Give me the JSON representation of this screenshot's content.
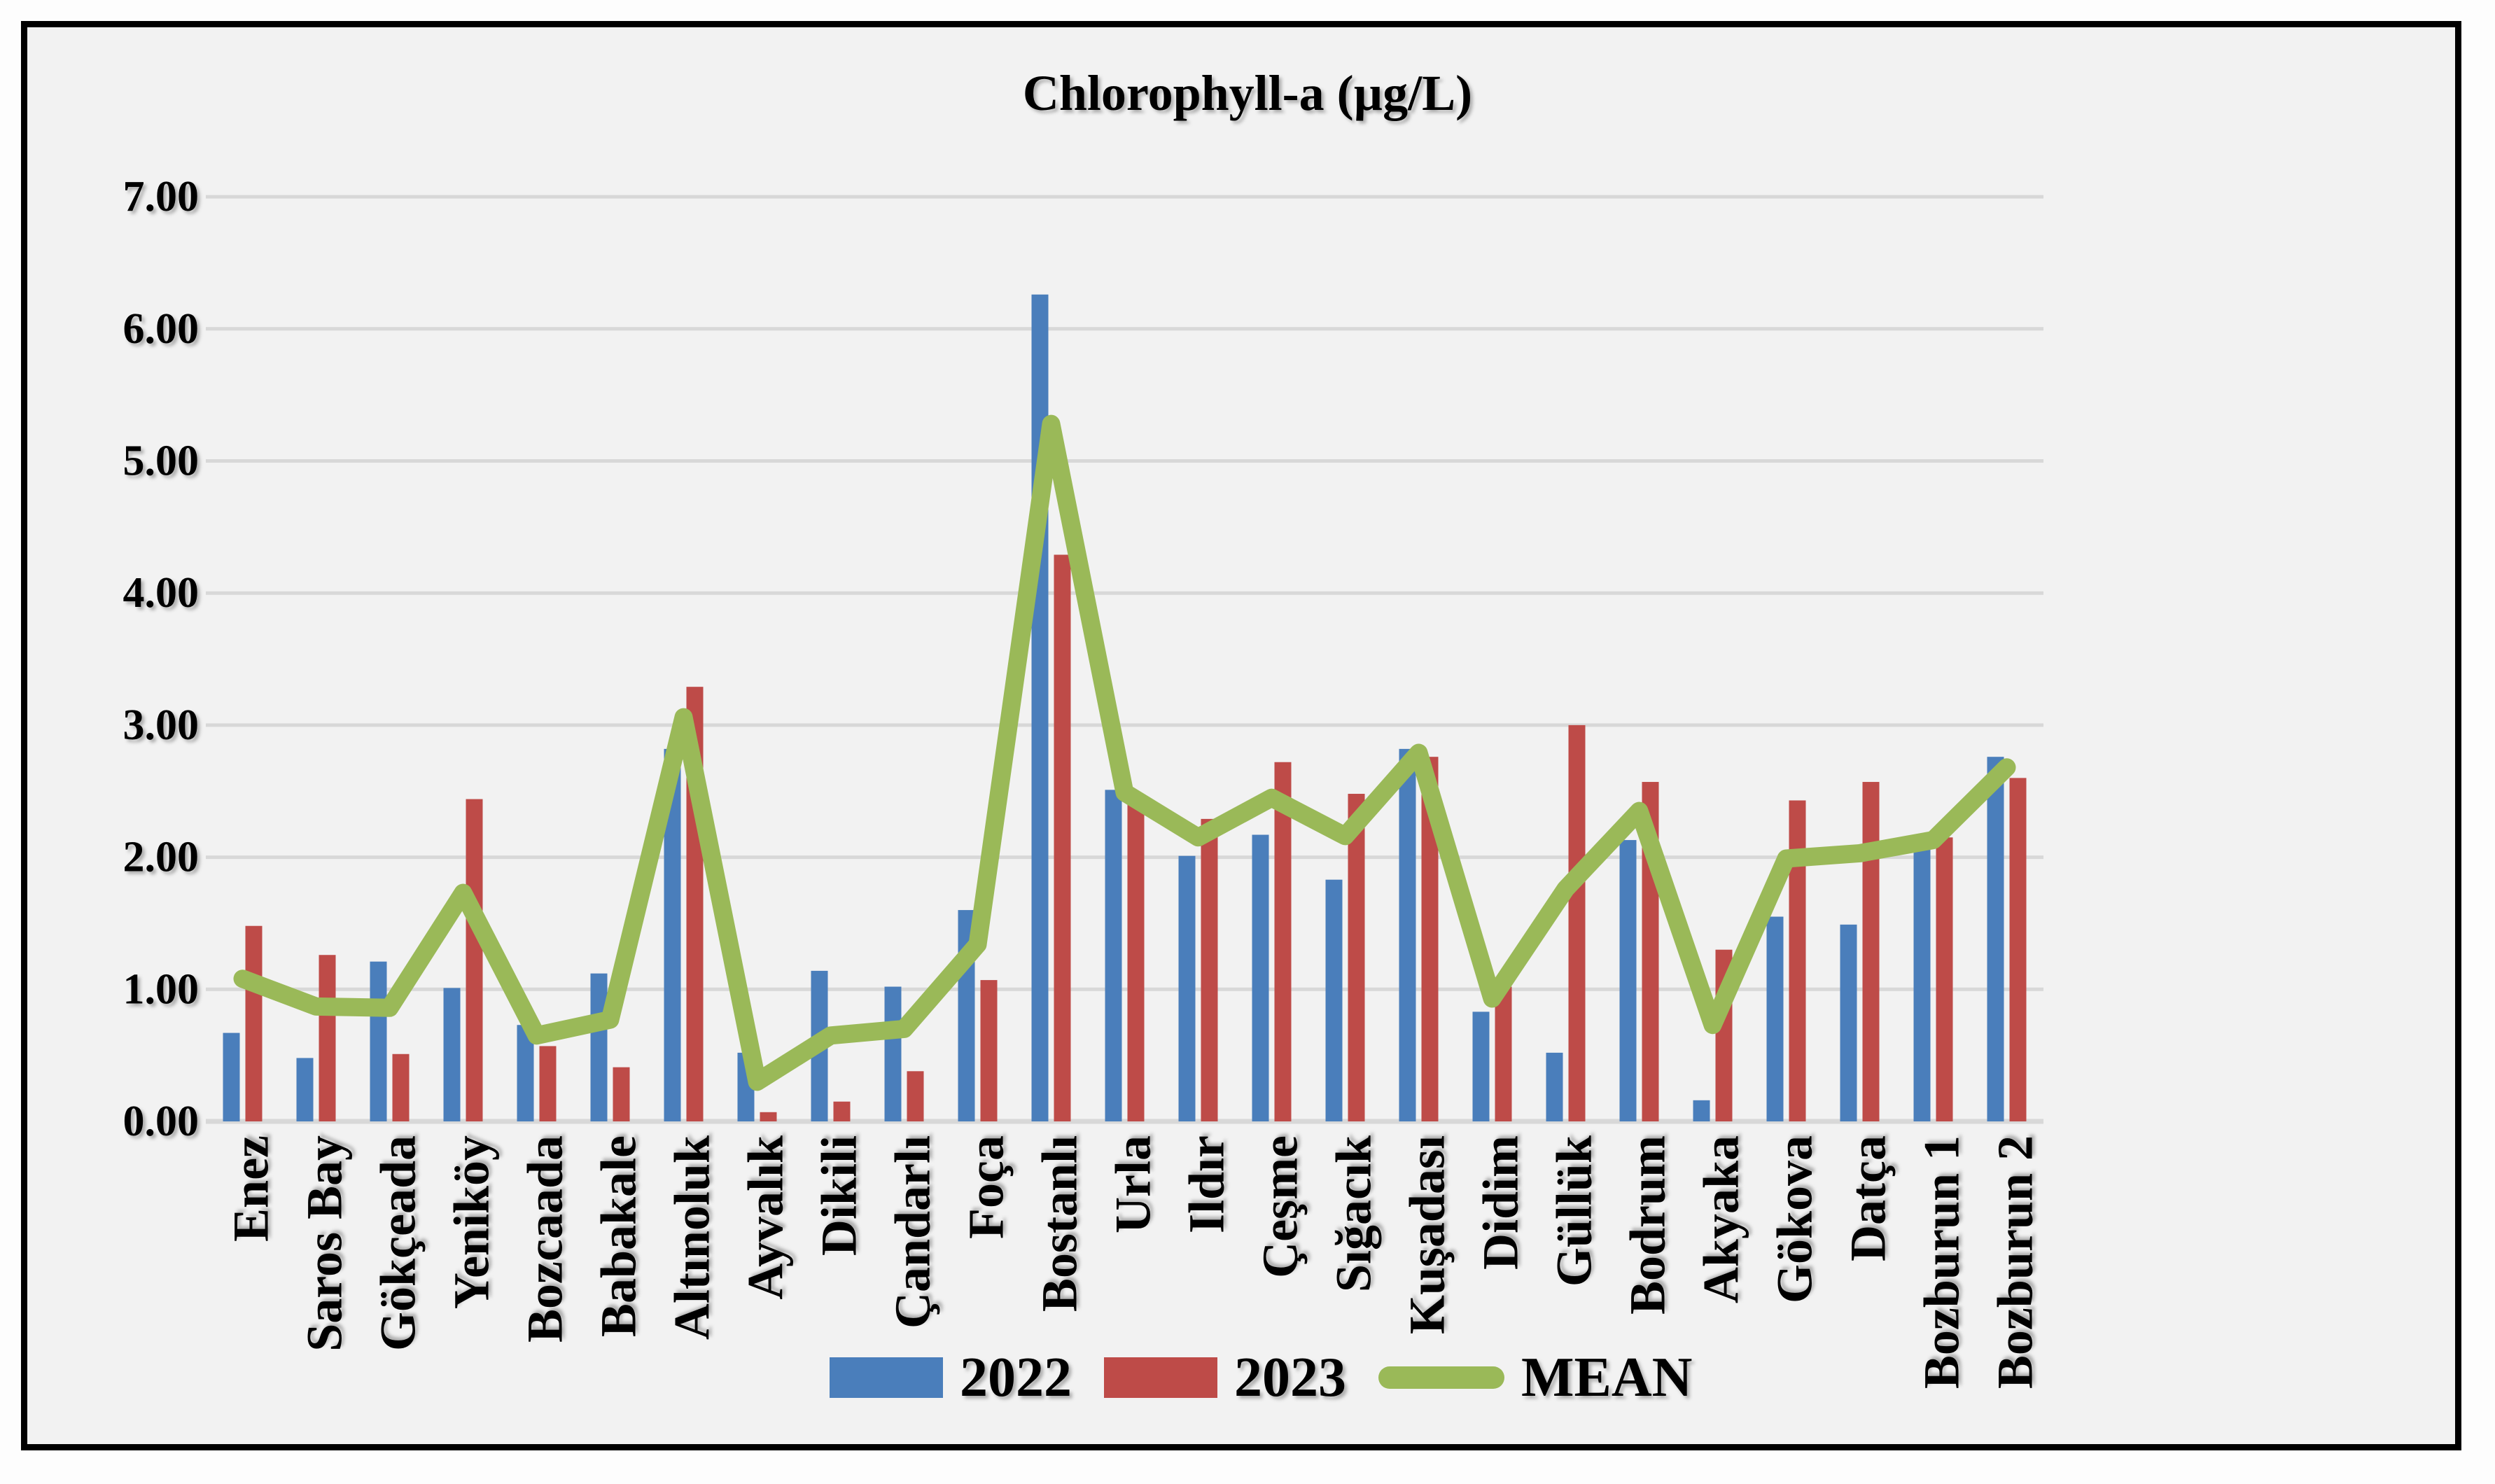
{
  "window": {
    "panel_background": "#f2f2f2",
    "frame_border_color": "#000000",
    "gridline_color": "#d8d8d8"
  },
  "chart_data": {
    "type": "bar",
    "title": "Chlorophyll-a (µg/L)",
    "xlabel": "",
    "ylabel": "",
    "ylim": [
      0,
      7
    ],
    "y_tick_step": 1,
    "y_tick_labels": [
      "0.00",
      "1.00",
      "2.00",
      "3.00",
      "4.00",
      "5.00",
      "6.00",
      "7.00"
    ],
    "grid": "horizontal",
    "legend_position": "bottom-center",
    "categories": [
      "Enez",
      "Saros Bay",
      "Gökçeada",
      "Yeniköy",
      "Bozcaada",
      "Babakale",
      "Altınoluk",
      "Ayvalık",
      "Dikili",
      "Çandarlı",
      "Foça",
      "Bostanlı",
      "Urla",
      "Ildır",
      "Çeşme",
      "Sığacık",
      "Kuşadası",
      "Didim",
      "Güllük",
      "Bodrum",
      "Akyaka",
      "Gökova",
      "Datça",
      "Bozburun 1",
      "Bozburun 2"
    ],
    "series": [
      {
        "name": "2022",
        "kind": "bar",
        "color": "#4a7ebb",
        "values": [
          0.67,
          0.48,
          1.21,
          1.01,
          0.73,
          1.12,
          2.82,
          0.52,
          1.14,
          1.02,
          1.6,
          6.26,
          2.51,
          2.01,
          2.17,
          1.83,
          2.82,
          0.83,
          0.52,
          2.13,
          0.16,
          1.55,
          1.49,
          2.1,
          2.76
        ]
      },
      {
        "name": "2023",
        "kind": "bar",
        "color": "#be4b48",
        "values": [
          1.48,
          1.26,
          0.51,
          2.44,
          0.57,
          0.41,
          3.29,
          0.07,
          0.15,
          0.38,
          1.07,
          4.29,
          2.47,
          2.29,
          2.72,
          2.48,
          2.76,
          1.02,
          3.0,
          2.57,
          1.3,
          2.43,
          2.57,
          2.15,
          2.6
        ]
      },
      {
        "name": "MEAN",
        "kind": "line",
        "color": "#9ab958",
        "values": [
          1.08,
          0.87,
          0.86,
          1.73,
          0.65,
          0.77,
          3.06,
          0.3,
          0.65,
          0.7,
          1.34,
          5.28,
          2.49,
          2.15,
          2.45,
          2.16,
          2.79,
          0.93,
          1.76,
          2.35,
          0.73,
          1.99,
          2.03,
          2.13,
          2.68
        ]
      }
    ]
  }
}
